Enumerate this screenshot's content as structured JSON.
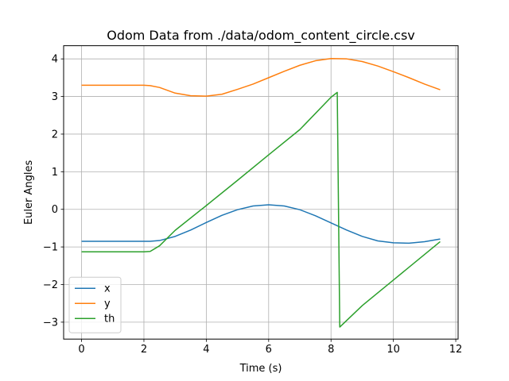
{
  "chart_data": {
    "type": "line",
    "title": "Odom Data from ./data/odom_content_circle.csv",
    "xlabel": "Time (s)",
    "ylabel": "Euler Angles",
    "xlim": [
      -0.575,
      12.075
    ],
    "ylim": [
      -3.45,
      4.35
    ],
    "xticks": [
      0,
      2,
      4,
      6,
      8,
      10,
      12
    ],
    "yticks": [
      -3,
      -2,
      -1,
      0,
      1,
      2,
      3,
      4
    ],
    "xtick_labels": [
      "0",
      "2",
      "4",
      "6",
      "8",
      "10",
      "12"
    ],
    "ytick_labels": [
      "−3",
      "−2",
      "−1",
      "0",
      "1",
      "2",
      "3",
      "4"
    ],
    "grid": true,
    "legend_position": "lower-left",
    "series": [
      {
        "name": "x",
        "color": "#1f77b4",
        "x": [
          0,
          1,
          2,
          2.2,
          2.5,
          3,
          3.5,
          4,
          4.5,
          5,
          5.5,
          6,
          6.5,
          7,
          7.5,
          8,
          8.5,
          9,
          9.5,
          10,
          10.5,
          11,
          11.5
        ],
        "y": [
          -0.85,
          -0.85,
          -0.85,
          -0.85,
          -0.83,
          -0.72,
          -0.55,
          -0.35,
          -0.16,
          -0.01,
          0.09,
          0.12,
          0.09,
          -0.01,
          -0.17,
          -0.36,
          -0.55,
          -0.72,
          -0.84,
          -0.89,
          -0.9,
          -0.86,
          -0.79
        ]
      },
      {
        "name": "y",
        "color": "#ff7f0e",
        "x": [
          0,
          1,
          2,
          2.2,
          2.5,
          3,
          3.5,
          4,
          4.5,
          5,
          5.5,
          6,
          6.5,
          7,
          7.5,
          8,
          8.5,
          9,
          9.5,
          10,
          10.5,
          11,
          11.5
        ],
        "y": [
          3.3,
          3.3,
          3.3,
          3.29,
          3.24,
          3.09,
          3.02,
          3.01,
          3.06,
          3.19,
          3.33,
          3.5,
          3.67,
          3.83,
          3.95,
          4.01,
          4.0,
          3.93,
          3.81,
          3.66,
          3.5,
          3.33,
          3.18
        ]
      },
      {
        "name": "th",
        "color": "#2ca02c",
        "x": [
          0,
          1,
          2,
          2.2,
          2.5,
          3,
          4,
          5,
          6,
          7,
          8,
          8.2,
          8.28,
          9,
          10,
          11,
          11.5
        ],
        "y": [
          -1.13,
          -1.13,
          -1.13,
          -1.12,
          -0.97,
          -0.56,
          0.1,
          0.77,
          1.45,
          2.12,
          2.98,
          3.11,
          -3.13,
          -2.56,
          -1.88,
          -1.2,
          -0.86
        ]
      }
    ]
  }
}
